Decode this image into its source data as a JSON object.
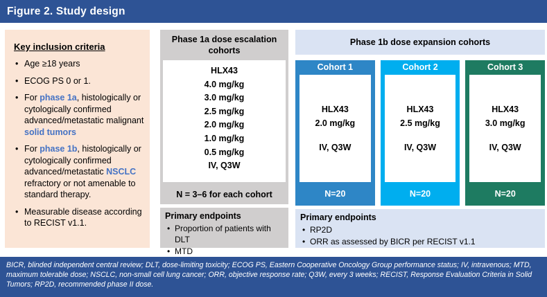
{
  "colors": {
    "header_bg": "#2E5395",
    "accent_text": "#4472C4",
    "inclusion_bg": "#FBE5D6",
    "gray_bg": "#D0CECE",
    "light_blue_bg": "#DAE3F3",
    "cohort1": "#2E86C6",
    "cohort2": "#00AEEF",
    "cohort3": "#1E7B61"
  },
  "header": {
    "title": "Figure 2. Study design"
  },
  "inclusion": {
    "title": "Key inclusion criteria",
    "items": [
      [
        {
          "text": "Age ≥18 years"
        }
      ],
      [
        {
          "text": "ECOG PS 0 or 1."
        }
      ],
      [
        {
          "text": "For "
        },
        {
          "text": "phase 1a",
          "bold": true,
          "blue": true
        },
        {
          "text": ", histologically or cytologically confirmed advanced/metastatic malignant "
        },
        {
          "text": "solid tumors",
          "bold": true,
          "blue": true
        }
      ],
      [
        {
          "text": "For "
        },
        {
          "text": "phase 1b",
          "bold": true,
          "blue": true
        },
        {
          "text": ", histologically or cytologically confirmed advanced/metastatic "
        },
        {
          "text": "NSCLC",
          "bold": true,
          "blue": true
        },
        {
          "text": " refractory or not amenable to standard therapy."
        }
      ],
      [
        {
          "text": "Measurable disease according to RECIST v1.1."
        }
      ]
    ]
  },
  "escalation": {
    "title": "Phase 1a dose escalation cohorts",
    "drug": "HLX43",
    "doses": [
      "4.0 mg/kg",
      "3.0 mg/kg",
      "2.5 mg/kg",
      "2.0 mg/kg",
      "1.0 mg/kg",
      "0.5 mg/kg"
    ],
    "schedule": "IV, Q3W",
    "note": "N = 3–6 for each cohort",
    "endpoints_title": "Primary endpoints",
    "endpoints": [
      "Proportion of patients with DLT",
      "MTD"
    ]
  },
  "expansion": {
    "title": "Phase 1b dose expansion cohorts",
    "cohorts": [
      {
        "name": "Cohort 1",
        "drug": "HLX43",
        "dose": "2.0 mg/kg",
        "schedule": "IV, Q3W",
        "n": "N=20",
        "color": "#2E86C6"
      },
      {
        "name": "Cohort 2",
        "drug": "HLX43",
        "dose": "2.5 mg/kg",
        "schedule": "IV, Q3W",
        "n": "N=20",
        "color": "#00AEEF"
      },
      {
        "name": "Cohort 3",
        "drug": "HLX43",
        "dose": "3.0 mg/kg",
        "schedule": "IV, Q3W",
        "n": "N=20",
        "color": "#1E7B61"
      }
    ],
    "endpoints_title": "Primary endpoints",
    "endpoints": [
      "RP2D",
      "ORR as assessed by BICR per RECIST v1.1"
    ]
  },
  "footnote": "BICR, blinded independent central review; DLT, dose-limiting toxicity; ECOG PS, Eastern Cooperative Oncology Group performance status; IV, intravenous; MTD, maximum tolerable dose; NSCLC, non-small cell lung cancer; ORR, objective response rate; Q3W, every 3 weeks; RECIST, Response Evaluation Criteria in Solid Tumors; RP2D, recommended phase II dose."
}
